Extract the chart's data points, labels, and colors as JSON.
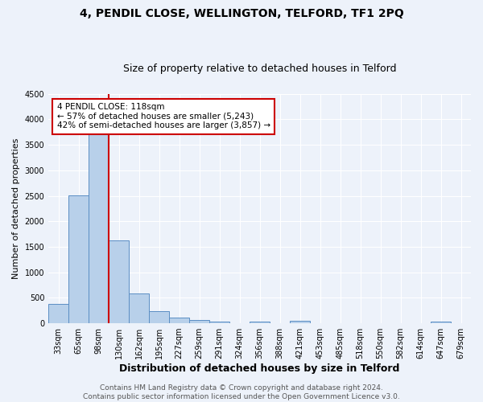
{
  "title": "4, PENDIL CLOSE, WELLINGTON, TELFORD, TF1 2PQ",
  "subtitle": "Size of property relative to detached houses in Telford",
  "xlabel": "Distribution of detached houses by size in Telford",
  "ylabel": "Number of detached properties",
  "bin_labels": [
    "33sqm",
    "65sqm",
    "98sqm",
    "130sqm",
    "162sqm",
    "195sqm",
    "227sqm",
    "259sqm",
    "291sqm",
    "324sqm",
    "356sqm",
    "388sqm",
    "421sqm",
    "453sqm",
    "485sqm",
    "518sqm",
    "550sqm",
    "582sqm",
    "614sqm",
    "647sqm",
    "679sqm"
  ],
  "bar_values": [
    380,
    2510,
    3720,
    1630,
    580,
    240,
    105,
    60,
    40,
    0,
    40,
    0,
    55,
    0,
    0,
    0,
    0,
    0,
    0,
    40,
    0
  ],
  "bar_color": "#b8d0ea",
  "bar_edge_color": "#5b8ec4",
  "vline_color": "#cc0000",
  "vline_position": 2.5,
  "annotation_text": "4 PENDIL CLOSE: 118sqm\n← 57% of detached houses are smaller (5,243)\n42% of semi-detached houses are larger (3,857) →",
  "annotation_box_facecolor": "#ffffff",
  "annotation_box_edgecolor": "#cc0000",
  "ylim": [
    0,
    4500
  ],
  "yticks": [
    0,
    500,
    1000,
    1500,
    2000,
    2500,
    3000,
    3500,
    4000,
    4500
  ],
  "footer_text": "Contains HM Land Registry data © Crown copyright and database right 2024.\nContains public sector information licensed under the Open Government Licence v3.0.",
  "bg_color": "#edf2fa",
  "plot_bg_color": "#edf2fa",
  "grid_color": "#ffffff",
  "title_fontsize": 10,
  "subtitle_fontsize": 9,
  "xlabel_fontsize": 9,
  "ylabel_fontsize": 8,
  "tick_fontsize": 7,
  "annot_fontsize": 7.5,
  "footer_fontsize": 6.5
}
